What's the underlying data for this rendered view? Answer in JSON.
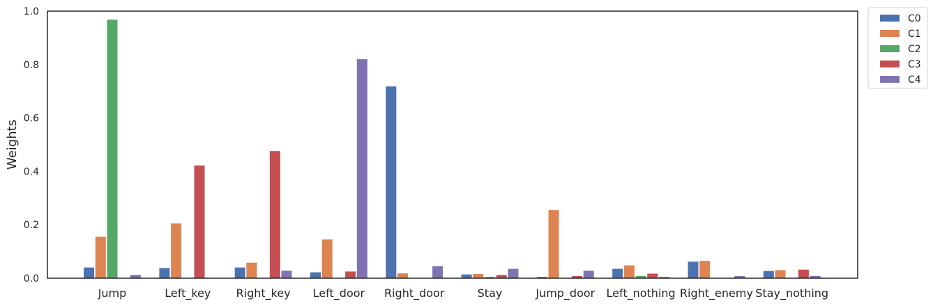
{
  "chart_data": {
    "type": "bar",
    "title": "",
    "xlabel": "",
    "ylabel": "Weights",
    "ylim": [
      0,
      1.0
    ],
    "yticks": [
      "0.0",
      "0.2",
      "0.4",
      "0.6",
      "0.8",
      "1.0"
    ],
    "grid": false,
    "legend_position": "outside-top-right",
    "categories": [
      "Jump",
      "Left_key",
      "Right_key",
      "Left_door",
      "Right_door",
      "Stay",
      "Jump_door",
      "Left_nothing",
      "Right_enemy",
      "Stay_nothing"
    ],
    "series": [
      {
        "name": "C0",
        "color": "#4c72b0",
        "values": [
          0.04,
          0.038,
          0.04,
          0.022,
          0.718,
          0.014,
          0.005,
          0.035,
          0.062,
          0.027
        ]
      },
      {
        "name": "C1",
        "color": "#dd8452",
        "values": [
          0.155,
          0.205,
          0.058,
          0.145,
          0.018,
          0.016,
          0.255,
          0.048,
          0.065,
          0.03
        ]
      },
      {
        "name": "C2",
        "color": "#55a868",
        "values": [
          0.968,
          0.0,
          0.0,
          0.0,
          0.0,
          0.005,
          0.0,
          0.008,
          0.0,
          0.0
        ]
      },
      {
        "name": "C3",
        "color": "#c44e52",
        "values": [
          0.0,
          0.422,
          0.476,
          0.025,
          0.0,
          0.012,
          0.008,
          0.017,
          0.0,
          0.032
        ]
      },
      {
        "name": "C4",
        "color": "#8172b3",
        "values": [
          0.012,
          0.0,
          0.028,
          0.82,
          0.045,
          0.035,
          0.028,
          0.005,
          0.008,
          0.008
        ]
      }
    ]
  }
}
